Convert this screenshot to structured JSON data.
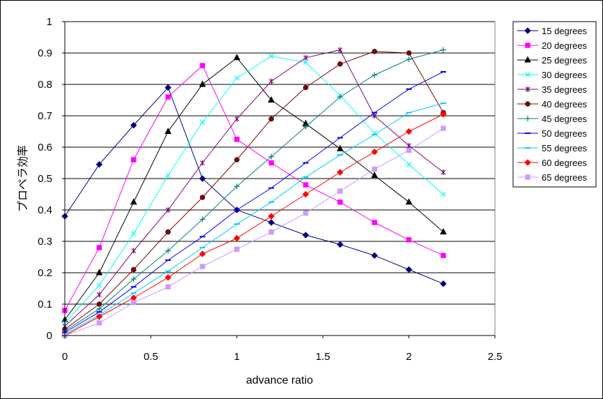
{
  "chart_data": {
    "type": "line",
    "title": "",
    "xlabel": "advance ratio",
    "ylabel": "プロペラ効率",
    "xlim": [
      0,
      2.5
    ],
    "ylim": [
      0,
      1
    ],
    "x_ticks": [
      "0",
      "0.5",
      "1",
      "1.5",
      "2",
      "2.5"
    ],
    "y_ticks": [
      "0",
      "0.1",
      "0.2",
      "0.3",
      "0.4",
      "0.5",
      "0.6",
      "0.7",
      "0.8",
      "0.9",
      "1"
    ],
    "grid": "horizontal",
    "legend_position": "right",
    "series": [
      {
        "name": "15 degrees",
        "color": "#000080",
        "marker": "diamond",
        "x": [
          0,
          0.2,
          0.4,
          0.6,
          0.8,
          1.0,
          1.2,
          1.4,
          1.6,
          1.8,
          2.0,
          2.2
        ],
        "y": [
          0.38,
          0.545,
          0.67,
          0.79,
          0.5,
          0.4,
          0.36,
          0.32,
          0.29,
          0.255,
          0.21,
          0.165
        ]
      },
      {
        "name": "20 degrees",
        "color": "#FF00FF",
        "marker": "square",
        "x": [
          0,
          0.2,
          0.4,
          0.6,
          0.8,
          1.0,
          1.2,
          1.4,
          1.6,
          1.8,
          2.0,
          2.2
        ],
        "y": [
          0.08,
          0.28,
          0.56,
          0.76,
          0.86,
          0.625,
          0.55,
          0.48,
          0.425,
          0.36,
          0.305,
          0.255
        ]
      },
      {
        "name": "25 degrees",
        "color": "#000000",
        "marker": "triangle",
        "x": [
          0,
          0.2,
          0.4,
          0.6,
          0.8,
          1.0,
          1.2,
          1.4,
          1.6,
          1.8,
          2.0,
          2.2
        ],
        "y": [
          0.05,
          0.2,
          0.425,
          0.65,
          0.8,
          0.885,
          0.75,
          0.675,
          0.595,
          0.51,
          0.425,
          0.33
        ]
      },
      {
        "name": "30 degrees",
        "color": "#00FFFF",
        "marker": "x",
        "x": [
          0,
          0.2,
          0.4,
          0.6,
          0.8,
          1.0,
          1.2,
          1.4,
          1.6,
          1.8,
          2.0,
          2.2
        ],
        "y": [
          0.04,
          0.16,
          0.325,
          0.51,
          0.68,
          0.82,
          0.89,
          0.87,
          0.765,
          0.645,
          0.545,
          0.45
        ]
      },
      {
        "name": "35 degrees",
        "color": "#800080",
        "marker": "star",
        "x": [
          0,
          0.2,
          0.4,
          0.6,
          0.8,
          1.0,
          1.2,
          1.4,
          1.6,
          1.8,
          2.0,
          2.2
        ],
        "y": [
          0.03,
          0.13,
          0.27,
          0.4,
          0.55,
          0.69,
          0.81,
          0.885,
          0.91,
          0.7,
          0.605,
          0.52
        ]
      },
      {
        "name": "40 degrees",
        "color": "#800000",
        "marker": "circle",
        "x": [
          0,
          0.2,
          0.4,
          0.6,
          0.8,
          1.0,
          1.2,
          1.4,
          1.6,
          1.8,
          2.0,
          2.2
        ],
        "y": [
          0.02,
          0.1,
          0.21,
          0.33,
          0.44,
          0.56,
          0.69,
          0.79,
          0.865,
          0.905,
          0.9,
          0.71
        ]
      },
      {
        "name": "45  degrees",
        "color": "#008080",
        "marker": "plus",
        "x": [
          0,
          0.2,
          0.4,
          0.6,
          0.8,
          1.0,
          1.2,
          1.4,
          1.6,
          1.8,
          2.0,
          2.2
        ],
        "y": [
          0.015,
          0.085,
          0.18,
          0.27,
          0.37,
          0.475,
          0.57,
          0.665,
          0.76,
          0.83,
          0.88,
          0.91
        ]
      },
      {
        "name": "50 degrees",
        "color": "#0000FF",
        "marker": "dash",
        "x": [
          0,
          0.2,
          0.4,
          0.6,
          0.8,
          1.0,
          1.2,
          1.4,
          1.6,
          1.8,
          2.0,
          2.2
        ],
        "y": [
          0.01,
          0.075,
          0.155,
          0.24,
          0.315,
          0.4,
          0.47,
          0.55,
          0.63,
          0.71,
          0.785,
          0.84
        ]
      },
      {
        "name": "55 degrees",
        "color": "#00CCFF",
        "marker": "dash",
        "x": [
          0,
          0.2,
          0.4,
          0.6,
          0.8,
          1.0,
          1.2,
          1.4,
          1.6,
          1.8,
          2.0,
          2.2
        ],
        "y": [
          0.005,
          0.065,
          0.135,
          0.205,
          0.28,
          0.355,
          0.425,
          0.505,
          0.575,
          0.64,
          0.71,
          0.74
        ]
      },
      {
        "name": "60 degrees",
        "color": "#FF0000",
        "marker": "diamond",
        "x": [
          0,
          0.2,
          0.4,
          0.6,
          0.8,
          1.0,
          1.2,
          1.4,
          1.6,
          1.8,
          2.0,
          2.2
        ],
        "y": [
          0.0,
          0.06,
          0.12,
          0.185,
          0.26,
          0.31,
          0.38,
          0.45,
          0.52,
          0.585,
          0.65,
          0.705
        ]
      },
      {
        "name": "65 degrees",
        "color": "#CC99FF",
        "marker": "square",
        "x": [
          0,
          0.2,
          0.4,
          0.6,
          0.8,
          1.0,
          1.2,
          1.4,
          1.6,
          1.8,
          2.0,
          2.2
        ],
        "y": [
          0.0,
          0.04,
          0.105,
          0.155,
          0.22,
          0.275,
          0.33,
          0.39,
          0.46,
          0.53,
          0.59,
          0.66
        ]
      }
    ]
  }
}
